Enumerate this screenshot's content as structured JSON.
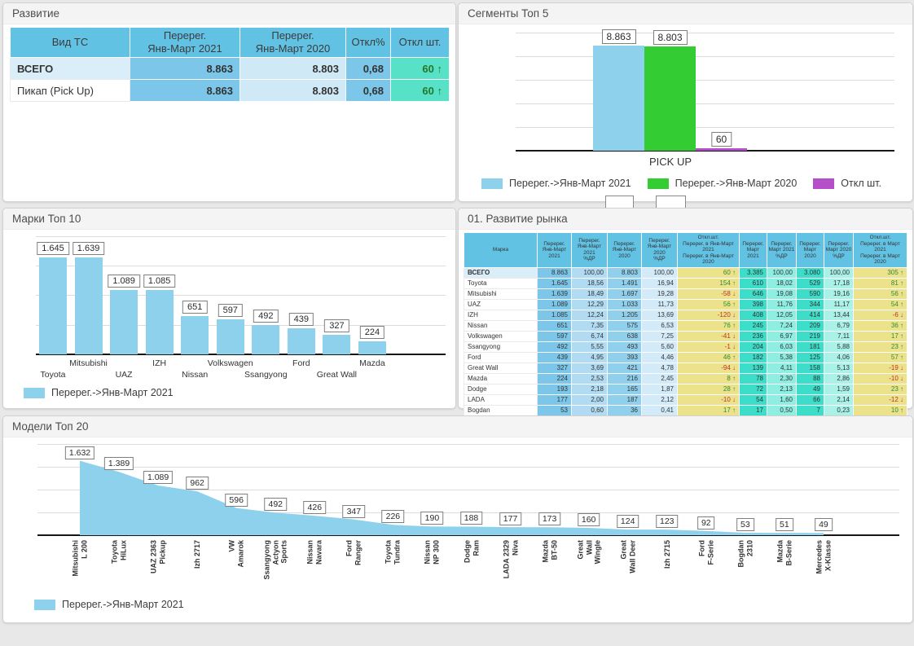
{
  "icons": {
    "arrow_up": "↑",
    "arrow_down": "↓"
  },
  "colors": {
    "background": "#e8e8e8",
    "header_blue": "#62c2e4",
    "cell_blue": "#7cc7e9",
    "cell_blue_light": "#cfe9f7",
    "cell_teal": "#3cdeca",
    "cell_yellow": "#ece28b",
    "diff_teal": "#57e1c7",
    "bar_blue": "#8ed1ec",
    "bar_green": "#33cc33",
    "bar_purple": "#b44ec9",
    "positive": "#2f8a32",
    "negative": "#c13325"
  },
  "panels": {
    "razvitie": {
      "title": "Развитие"
    },
    "segments": {
      "title": "Сегменты Топ 5"
    },
    "marki": {
      "title": "Марки Топ 10"
    },
    "market": {
      "title": "01. Развитие рынка"
    },
    "models": {
      "title": "Модели Топ 20"
    }
  },
  "chart_data": [
    {
      "id": "razvitie-table",
      "type": "table",
      "title": "Развитие",
      "columns": [
        [
          "Вид ТС"
        ],
        [
          "Перерег.",
          "Янв-Март 2021"
        ],
        [
          "Перерег.",
          "Янв-Март 2020"
        ],
        [
          "Откл%"
        ],
        [
          "Откл шт."
        ]
      ],
      "rows": [
        {
          "label": "ВСЕГО",
          "bold": true,
          "highlight": true,
          "v2021": "8.863",
          "v2020": "8.803",
          "pct": "0,68",
          "diff": "60",
          "dir": "up"
        },
        {
          "label": "Пикап (Pick Up)",
          "bold": false,
          "highlight": false,
          "v2021": "8.863",
          "v2020": "8.803",
          "pct": "0,68",
          "diff": "60",
          "dir": "up"
        }
      ]
    },
    {
      "id": "segments-chart",
      "type": "bar",
      "title": "Сегменты Топ 5",
      "categories": [
        "PICK UP"
      ],
      "series": [
        {
          "name": "Перерег.->Янв-Март 2021",
          "color": "#8ed1ec",
          "values": [
            8863
          ],
          "labels": [
            "8.863"
          ]
        },
        {
          "name": "Перерег.->Янв-Март 2020",
          "color": "#33cc33",
          "values": [
            8803
          ],
          "labels": [
            "8.803"
          ]
        },
        {
          "name": "Откл шт.",
          "color": "#b44ec9",
          "values": [
            60
          ],
          "labels": [
            "60"
          ]
        }
      ],
      "xlabel": "",
      "ylabel": "",
      "ylim": [
        0,
        10000
      ],
      "grid_step": 2000,
      "grid": true,
      "legend_position": "bottom"
    },
    {
      "id": "marki-chart",
      "type": "bar",
      "title": "Марки Топ 10",
      "categories": [
        "Toyota",
        "Mitsubishi",
        "UAZ",
        "IZH",
        "Nissan",
        "Volkswagen",
        "Ssangyong",
        "Ford",
        "Great Wall",
        "Mazda"
      ],
      "values": [
        1645,
        1639,
        1089,
        1085,
        651,
        597,
        492,
        439,
        327,
        224
      ],
      "labels": [
        "1.645",
        "1.639",
        "1.089",
        "1.085",
        "651",
        "597",
        "492",
        "439",
        "327",
        "224"
      ],
      "legend": "Перерег.->Янв-Март 2021",
      "color": "#8ed1ec",
      "xlabel": "",
      "ylabel": "",
      "ylim": [
        0,
        2000
      ],
      "grid_step": 500,
      "grid": true,
      "legend_position": "bottom"
    },
    {
      "id": "market-table",
      "type": "table",
      "title": "01. Развитие рынка",
      "columns": [
        [
          "Марка"
        ],
        [
          "Перерег.",
          "Янв-Март 2021"
        ],
        [
          "Перерег.",
          "Янв-Март 2021",
          "%ДР"
        ],
        [
          "Перерег.",
          "Янв-Март 2020"
        ],
        [
          "Перерег.",
          "Янв-Март 2020",
          "%ДР"
        ],
        [
          "Откл.шт.",
          "Перерег. в Янв-Март 2021",
          "Перерег. в Янв-Март 2020"
        ],
        [
          "Перерег.",
          "Март 2021"
        ],
        [
          "Перерег.",
          "Март 2021",
          "%ДР"
        ],
        [
          "Перерег.",
          "Март 2020"
        ],
        [
          "Перерег.",
          "Март 2020",
          "%ДР"
        ],
        [
          "Откл.шт.",
          "Перерег. в Март 2021",
          "Перерег. в Март 2020"
        ]
      ],
      "rows": [
        [
          "ВСЕГО",
          "8.863",
          "100,00",
          "8.803",
          "100,00",
          "60",
          "3.385",
          "100,00",
          "3.080",
          "100,00",
          "305"
        ],
        [
          "Toyota",
          "1.645",
          "18,56",
          "1.491",
          "16,94",
          "154",
          "610",
          "18,02",
          "529",
          "17,18",
          "81"
        ],
        [
          "Mitsubishi",
          "1.639",
          "18,49",
          "1.697",
          "19,28",
          "-58",
          "646",
          "19,08",
          "590",
          "19,16",
          "56"
        ],
        [
          "UAZ",
          "1.089",
          "12,29",
          "1.033",
          "11,73",
          "56",
          "398",
          "11,76",
          "344",
          "11,17",
          "54"
        ],
        [
          "IZH",
          "1.085",
          "12,24",
          "1.205",
          "13,69",
          "-120",
          "408",
          "12,05",
          "414",
          "13,44",
          "-6"
        ],
        [
          "Nissan",
          "651",
          "7,35",
          "575",
          "6,53",
          "76",
          "245",
          "7,24",
          "209",
          "6,79",
          "36"
        ],
        [
          "Volkswagen",
          "597",
          "6,74",
          "638",
          "7,25",
          "-41",
          "236",
          "6,97",
          "219",
          "7,11",
          "17"
        ],
        [
          "Ssangyong",
          "492",
          "5,55",
          "493",
          "5,60",
          "-1",
          "204",
          "6,03",
          "181",
          "5,88",
          "23"
        ],
        [
          "Ford",
          "439",
          "4,95",
          "393",
          "4,46",
          "46",
          "182",
          "5,38",
          "125",
          "4,06",
          "57"
        ],
        [
          "Great Wall",
          "327",
          "3,69",
          "421",
          "4,78",
          "-94",
          "139",
          "4,11",
          "158",
          "5,13",
          "-19"
        ],
        [
          "Mazda",
          "224",
          "2,53",
          "216",
          "2,45",
          "8",
          "78",
          "2,30",
          "88",
          "2,86",
          "-10"
        ],
        [
          "Dodge",
          "193",
          "2,18",
          "165",
          "1,87",
          "28",
          "72",
          "2,13",
          "49",
          "1,59",
          "23"
        ],
        [
          "LADA",
          "177",
          "2,00",
          "187",
          "2,12",
          "-10",
          "54",
          "1,60",
          "66",
          "2,14",
          "-12"
        ],
        [
          "Bogdan",
          "53",
          "0,60",
          "36",
          "0,41",
          "17",
          "17",
          "0,50",
          "7",
          "0,23",
          "10"
        ]
      ]
    },
    {
      "id": "models-chart",
      "type": "area",
      "title": "Модели Топ 20",
      "categories": [
        [
          "Mitsubishi",
          "L 200"
        ],
        [
          "Toyota",
          "HiLux"
        ],
        [
          "UAZ 2363",
          "Pickup"
        ],
        [
          "Izh 2717"
        ],
        [
          "VW",
          "Amarok"
        ],
        [
          "Ssangyong",
          "Actyon",
          "Sports"
        ],
        [
          "Nissan",
          "Navara"
        ],
        [
          "Ford",
          "Ranger"
        ],
        [
          "Toyota",
          "Tundra"
        ],
        [
          "Nissan",
          "NP 300"
        ],
        [
          "Dodge",
          "Ram"
        ],
        [
          "LADA 2329",
          "Niva"
        ],
        [
          "Mazda",
          "BT-50"
        ],
        [
          "Great",
          "Wall",
          "Wingle"
        ],
        [
          "Great",
          "Wall Deer"
        ],
        [
          "Izh 2715"
        ],
        [
          "Ford",
          "F-Serie"
        ],
        [
          "Bogdan",
          "2310"
        ],
        [
          "Mazda",
          "B-Serie"
        ],
        [
          "Mercedes",
          "X-Klasse"
        ]
      ],
      "values": [
        1632,
        1389,
        1089,
        962,
        596,
        492,
        426,
        347,
        226,
        190,
        188,
        177,
        173,
        160,
        124,
        123,
        92,
        53,
        51,
        49
      ],
      "labels": [
        "1.632",
        "1.389",
        "1.089",
        "962",
        "596",
        "492",
        "426",
        "347",
        "226",
        "190",
        "188",
        "177",
        "173",
        "160",
        "124",
        "123",
        "92",
        "53",
        "51",
        "49"
      ],
      "legend": "Перерег.->Янв-Март 2021",
      "color": "#8ed1ec",
      "xlabel": "",
      "ylabel": "",
      "ylim": [
        0,
        2000
      ],
      "grid_step": 500,
      "grid": true,
      "legend_position": "bottom"
    }
  ]
}
